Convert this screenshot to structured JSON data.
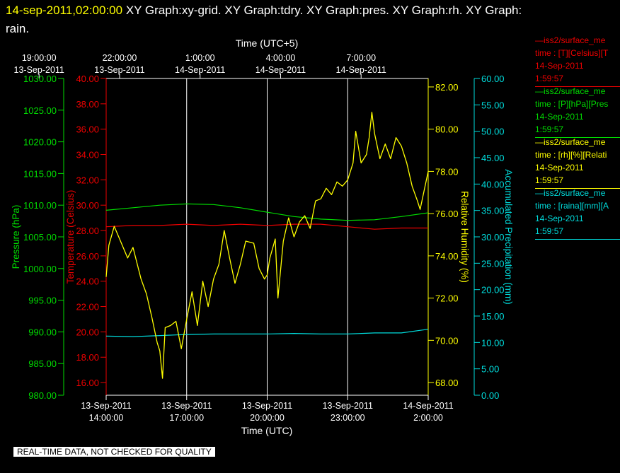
{
  "header": {
    "timestamp": "14-sep-2011,02:00:00",
    "title_line1": "  XY Graph:xy-grid.  XY Graph:tdry.  XY Graph:pres.  XY Graph:rh.  XY Graph:",
    "title_line2": "rain."
  },
  "banner": "REAL-TIME DATA, NOT CHECKED FOR QUALITY",
  "colors": {
    "pressure": "#00dd00",
    "temperature": "#ee0000",
    "humidity": "#ffff00",
    "precip": "#00dddd",
    "frame": "#ffffff",
    "grid": "#ffffff"
  },
  "legend": [
    {
      "line1": "—iss2/surface_me",
      "line2": "time : [T][Celsius][T",
      "line3": "14-Sep-2011",
      "line4": "1:59:57",
      "color": "#ee0000"
    },
    {
      "line1": "—iss2/surface_me",
      "line2": "time : [P][hPa][Pres",
      "line3": "14-Sep-2011",
      "line4": "1:59:57",
      "color": "#00dd00"
    },
    {
      "line1": "—iss2/surface_me",
      "line2": "time : [rh][%][Relati",
      "line3": "14-Sep-2011",
      "line4": "1:59:57",
      "color": "#ffff00"
    },
    {
      "line1": "—iss2/surface_me",
      "line2": "time : [raina][mm][A",
      "line3": "14-Sep-2011",
      "line4": "1:59:57",
      "color": "#00dddd"
    }
  ],
  "chart_data": {
    "type": "line",
    "x_bottom": {
      "label": "Time (UTC)",
      "range": [
        "13-Sep-2011 14:00:00",
        "14-Sep-2011 02:00:00"
      ],
      "ticks": [
        {
          "date": "13-Sep-2011",
          "time": "14:00:00"
        },
        {
          "date": "13-Sep-2011",
          "time": "17:00:00"
        },
        {
          "date": "13-Sep-2011",
          "time": "20:00:00"
        },
        {
          "date": "13-Sep-2011",
          "time": "23:00:00"
        },
        {
          "date": "14-Sep-2011",
          "time": "2:00:00"
        }
      ]
    },
    "x_top": {
      "label": "Time (UTC+5)",
      "ticks": [
        {
          "time": "19:00:00",
          "date": "13-Sep-2011"
        },
        {
          "time": "22:00:00",
          "date": "13-Sep-2011"
        },
        {
          "time": "1:00:00",
          "date": "14-Sep-2011"
        },
        {
          "time": "4:00:00",
          "date": "14-Sep-2011"
        },
        {
          "time": "7:00:00",
          "date": "14-Sep-2011"
        }
      ]
    },
    "grid": "vertical",
    "axes": {
      "pressure": {
        "label": "Pressure (hPa)",
        "range": [
          980,
          1030
        ],
        "ticks": [
          "980.00",
          "985.00",
          "990.00",
          "995.00",
          "1000.00",
          "1005.00",
          "1010.00",
          "1015.00",
          "1020.00",
          "1025.00",
          "1030.00"
        ]
      },
      "temperature": {
        "label": "Temperature (Celsius)",
        "range": [
          15,
          40
        ],
        "ticks": [
          "16.00",
          "18.00",
          "20.00",
          "22.00",
          "24.00",
          "26.00",
          "28.00",
          "30.00",
          "32.00",
          "34.00",
          "36.00",
          "38.00",
          "40.00"
        ]
      },
      "humidity": {
        "label": "Relative Humidity (%)",
        "range": [
          67.4,
          82.4
        ],
        "ticks": [
          "68.00",
          "70.00",
          "72.00",
          "74.00",
          "76.00",
          "78.00",
          "80.00",
          "82.00"
        ]
      },
      "precip": {
        "label": "Accumulated Precipitation (mm)",
        "range": [
          0,
          60
        ],
        "ticks": [
          "0.00",
          "5.00",
          "10.00",
          "15.00",
          "20.00",
          "25.00",
          "30.00",
          "35.00",
          "40.00",
          "45.00",
          "50.00",
          "55.00",
          "60.00"
        ]
      }
    },
    "series": [
      {
        "key": "pressure",
        "axis": "pressure",
        "points": [
          [
            0,
            1009.2
          ],
          [
            1,
            1009.6
          ],
          [
            2,
            1010.0
          ],
          [
            3,
            1010.2
          ],
          [
            4,
            1010.1
          ],
          [
            5,
            1009.6
          ],
          [
            6,
            1008.9
          ],
          [
            7,
            1008.2
          ],
          [
            8,
            1007.8
          ],
          [
            9,
            1007.6
          ],
          [
            10,
            1007.7
          ],
          [
            11,
            1008.2
          ],
          [
            12,
            1008.8
          ]
        ]
      },
      {
        "key": "temperature",
        "axis": "temperature",
        "points": [
          [
            0,
            28.3
          ],
          [
            1,
            28.4
          ],
          [
            2,
            28.4
          ],
          [
            3,
            28.5
          ],
          [
            4,
            28.4
          ],
          [
            5,
            28.5
          ],
          [
            6,
            28.4
          ],
          [
            7,
            28.5
          ],
          [
            8,
            28.5
          ],
          [
            9,
            28.3
          ],
          [
            10,
            28.1
          ],
          [
            11,
            28.2
          ],
          [
            12,
            28.2
          ]
        ]
      },
      {
        "key": "precip",
        "axis": "precip",
        "points": [
          [
            0,
            11.2
          ],
          [
            1,
            11.1
          ],
          [
            2,
            11.3
          ],
          [
            3,
            11.5
          ],
          [
            4,
            11.6
          ],
          [
            5,
            11.6
          ],
          [
            6,
            11.6
          ],
          [
            7,
            11.7
          ],
          [
            8,
            11.6
          ],
          [
            9,
            11.6
          ],
          [
            10,
            11.8
          ],
          [
            11,
            11.8
          ],
          [
            12,
            12.5
          ]
        ]
      },
      {
        "key": "humidity",
        "axis": "humidity",
        "points": [
          [
            0,
            73.0
          ],
          [
            0.1,
            74.5
          ],
          [
            0.3,
            75.4
          ],
          [
            0.5,
            74.8
          ],
          [
            0.8,
            73.9
          ],
          [
            1.0,
            74.4
          ],
          [
            1.3,
            72.9
          ],
          [
            1.5,
            72.2
          ],
          [
            1.7,
            71.1
          ],
          [
            1.9,
            69.9
          ],
          [
            2.0,
            69.5
          ],
          [
            2.1,
            68.2
          ],
          [
            2.2,
            70.6
          ],
          [
            2.4,
            70.7
          ],
          [
            2.6,
            70.9
          ],
          [
            2.8,
            69.6
          ],
          [
            3.0,
            71.0
          ],
          [
            3.2,
            72.3
          ],
          [
            3.4,
            70.7
          ],
          [
            3.6,
            72.8
          ],
          [
            3.8,
            71.6
          ],
          [
            4.0,
            72.9
          ],
          [
            4.2,
            73.6
          ],
          [
            4.4,
            75.2
          ],
          [
            4.6,
            73.9
          ],
          [
            4.8,
            72.7
          ],
          [
            5.0,
            73.6
          ],
          [
            5.2,
            74.7
          ],
          [
            5.5,
            74.6
          ],
          [
            5.7,
            73.4
          ],
          [
            5.9,
            72.9
          ],
          [
            6.0,
            73.1
          ],
          [
            6.1,
            73.9
          ],
          [
            6.3,
            74.8
          ],
          [
            6.4,
            72.0
          ],
          [
            6.6,
            74.7
          ],
          [
            6.8,
            75.8
          ],
          [
            7.0,
            74.9
          ],
          [
            7.2,
            75.6
          ],
          [
            7.4,
            75.9
          ],
          [
            7.6,
            75.3
          ],
          [
            7.8,
            76.6
          ],
          [
            8.0,
            76.7
          ],
          [
            8.2,
            77.2
          ],
          [
            8.4,
            76.9
          ],
          [
            8.6,
            77.5
          ],
          [
            8.8,
            77.3
          ],
          [
            9.0,
            77.6
          ],
          [
            9.2,
            78.4
          ],
          [
            9.3,
            79.9
          ],
          [
            9.5,
            78.4
          ],
          [
            9.7,
            78.8
          ],
          [
            9.8,
            79.6
          ],
          [
            9.9,
            80.8
          ],
          [
            10.0,
            79.8
          ],
          [
            10.2,
            78.6
          ],
          [
            10.4,
            79.3
          ],
          [
            10.6,
            78.6
          ],
          [
            10.8,
            79.6
          ],
          [
            11.0,
            79.2
          ],
          [
            11.2,
            78.4
          ],
          [
            11.4,
            77.3
          ],
          [
            11.6,
            76.6
          ],
          [
            11.7,
            76.2
          ],
          [
            11.8,
            76.8
          ],
          [
            12.0,
            78.0
          ]
        ]
      }
    ]
  }
}
